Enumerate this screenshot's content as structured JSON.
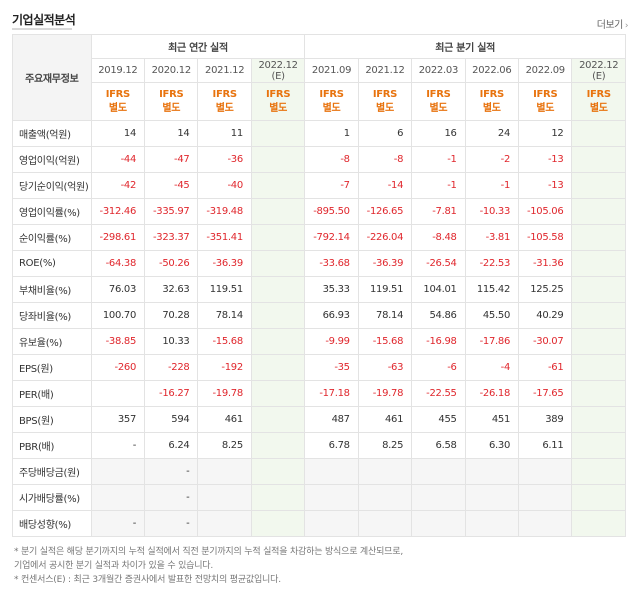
{
  "header": {
    "title": "기업실적분석",
    "more_label": "더보기"
  },
  "table": {
    "row_header_label": "주요재무정보",
    "group_annual": "최근 연간 실적",
    "group_quarter": "최근 분기 실적",
    "periods": [
      "2019.12",
      "2020.12",
      "2021.12",
      "2022.12\n(E)",
      "2021.09",
      "2021.12",
      "2022.03",
      "2022.06",
      "2022.09",
      "2022.12\n(E)"
    ],
    "basis": "IFRS\n별도",
    "rows": [
      {
        "label": "매출액(억원)",
        "values": [
          "14",
          "14",
          "11",
          "",
          "1",
          "6",
          "16",
          "24",
          "12",
          ""
        ]
      },
      {
        "label": "영업이익(억원)",
        "values": [
          "-44",
          "-47",
          "-36",
          "",
          "-8",
          "-8",
          "-1",
          "-2",
          "-13",
          ""
        ]
      },
      {
        "label": "당기순이익(억원)",
        "values": [
          "-42",
          "-45",
          "-40",
          "",
          "-7",
          "-14",
          "-1",
          "-1",
          "-13",
          ""
        ]
      },
      {
        "label": "영업이익률(%)",
        "values": [
          "-312.46",
          "-335.97",
          "-319.48",
          "",
          "-895.50",
          "-126.65",
          "-7.81",
          "-10.33",
          "-105.06",
          ""
        ]
      },
      {
        "label": "순이익률(%)",
        "values": [
          "-298.61",
          "-323.37",
          "-351.41",
          "",
          "-792.14",
          "-226.04",
          "-8.48",
          "-3.81",
          "-105.58",
          ""
        ]
      },
      {
        "label": "ROE(%)",
        "values": [
          "-64.38",
          "-50.26",
          "-36.39",
          "",
          "-33.68",
          "-36.39",
          "-26.54",
          "-22.53",
          "-31.36",
          ""
        ]
      },
      {
        "label": "부채비율(%)",
        "values": [
          "76.03",
          "32.63",
          "119.51",
          "",
          "35.33",
          "119.51",
          "104.01",
          "115.42",
          "125.25",
          ""
        ]
      },
      {
        "label": "당좌비율(%)",
        "values": [
          "100.70",
          "70.28",
          "78.14",
          "",
          "66.93",
          "78.14",
          "54.86",
          "45.50",
          "40.29",
          ""
        ]
      },
      {
        "label": "유보율(%)",
        "values": [
          "-38.85",
          "10.33",
          "-15.68",
          "",
          "-9.99",
          "-15.68",
          "-16.98",
          "-17.86",
          "-30.07",
          ""
        ]
      },
      {
        "label": "EPS(원)",
        "values": [
          "-260",
          "-228",
          "-192",
          "",
          "-35",
          "-63",
          "-6",
          "-4",
          "-61",
          ""
        ]
      },
      {
        "label": "PER(배)",
        "values": [
          "",
          "-16.27",
          "-19.78",
          "",
          "-17.18",
          "-19.78",
          "-22.55",
          "-26.18",
          "-17.65",
          ""
        ]
      },
      {
        "label": "BPS(원)",
        "values": [
          "357",
          "594",
          "461",
          "",
          "487",
          "461",
          "455",
          "451",
          "389",
          ""
        ]
      },
      {
        "label": "PBR(배)",
        "values": [
          "-",
          "6.24",
          "8.25",
          "",
          "6.78",
          "8.25",
          "6.58",
          "6.30",
          "6.11",
          ""
        ]
      },
      {
        "label": "주당배당금(원)",
        "values": [
          "",
          "-",
          "",
          "",
          "",
          "",
          "",
          "",
          "",
          ""
        ]
      },
      {
        "label": "시가배당률(%)",
        "values": [
          "",
          "-",
          "",
          "",
          "",
          "",
          "",
          "",
          "",
          ""
        ]
      },
      {
        "label": "배당성향(%)",
        "values": [
          "-",
          "-",
          "",
          "",
          "",
          "",
          "",
          "",
          "",
          ""
        ]
      }
    ]
  },
  "notes": {
    "line1": "* 분기 실적은 해당 분기까지의 누적 실적에서 직전 분기까지의 누적 실적을 차감하는 방식으로 계산되므로,",
    "line2": "  기업에서 공시한 분기 실적과 차이가 있을 수 있습니다.",
    "line3": "* 컨센서스(E) : 최근 3개월간 증권사에서 발표한 전망치의 평균값입니다."
  },
  "colors": {
    "negative": "#e0272d",
    "basis": "#e8730e",
    "estimate_bg": "#f2f8ee"
  }
}
